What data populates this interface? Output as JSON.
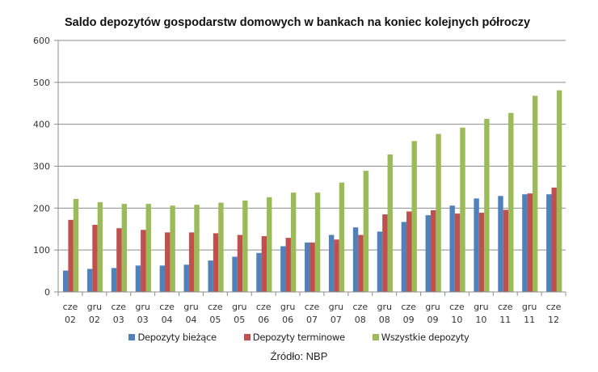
{
  "chart_data": {
    "type": "bar",
    "title": "Saldo depozytów gospodarstw domowych w bankach na koniec kolejnych półroczy",
    "xlabel": "",
    "ylabel": "",
    "ylim": [
      0,
      600
    ],
    "yticks": [
      0,
      100,
      200,
      300,
      400,
      500,
      600
    ],
    "grid": true,
    "legend_position": "bottom",
    "categories": [
      [
        "cze",
        "02"
      ],
      [
        "gru",
        "02"
      ],
      [
        "cze",
        "03"
      ],
      [
        "gru",
        "03"
      ],
      [
        "cze",
        "04"
      ],
      [
        "gru",
        "04"
      ],
      [
        "cze",
        "05"
      ],
      [
        "gru",
        "05"
      ],
      [
        "cze",
        "06"
      ],
      [
        "gru",
        "06"
      ],
      [
        "cze",
        "07"
      ],
      [
        "gru",
        "07"
      ],
      [
        "cze",
        "08"
      ],
      [
        "gru",
        "08"
      ],
      [
        "cze",
        "09"
      ],
      [
        "gru",
        "09"
      ],
      [
        "cze",
        "10"
      ],
      [
        "gru",
        "10"
      ],
      [
        "cze",
        "11"
      ],
      [
        "gru",
        "11"
      ],
      [
        "cze",
        "12"
      ]
    ],
    "series": [
      {
        "name": "Depozyty bieżące",
        "color": "#4F81BD",
        "values": [
          51,
          55,
          57,
          63,
          63,
          65,
          75,
          84,
          93,
          109,
          118,
          136,
          154,
          144,
          167,
          183,
          206,
          223,
          229,
          233,
          233
        ]
      },
      {
        "name": "Depozyty terminowe",
        "color": "#C0504D",
        "values": [
          172,
          160,
          152,
          148,
          142,
          142,
          140,
          136,
          133,
          129,
          118,
          125,
          136,
          185,
          192,
          195,
          187,
          189,
          196,
          235,
          249
        ]
      },
      {
        "name": "Wszystkie depozyty",
        "color": "#9BBB59",
        "values": [
          222,
          214,
          210,
          210,
          206,
          208,
          213,
          218,
          226,
          237,
          237,
          261,
          289,
          328,
          360,
          377,
          392,
          413,
          427,
          468,
          481
        ]
      }
    ],
    "annotations": [
      "Źródło: NBP"
    ]
  },
  "legend": {
    "items": [
      {
        "label": "Depozyty bieżące",
        "color": "#4F81BD"
      },
      {
        "label": "Depozyty terminowe",
        "color": "#C0504D"
      },
      {
        "label": "Wszystkie depozyty",
        "color": "#9BBB59"
      }
    ]
  },
  "source": "Źródło: NBP"
}
